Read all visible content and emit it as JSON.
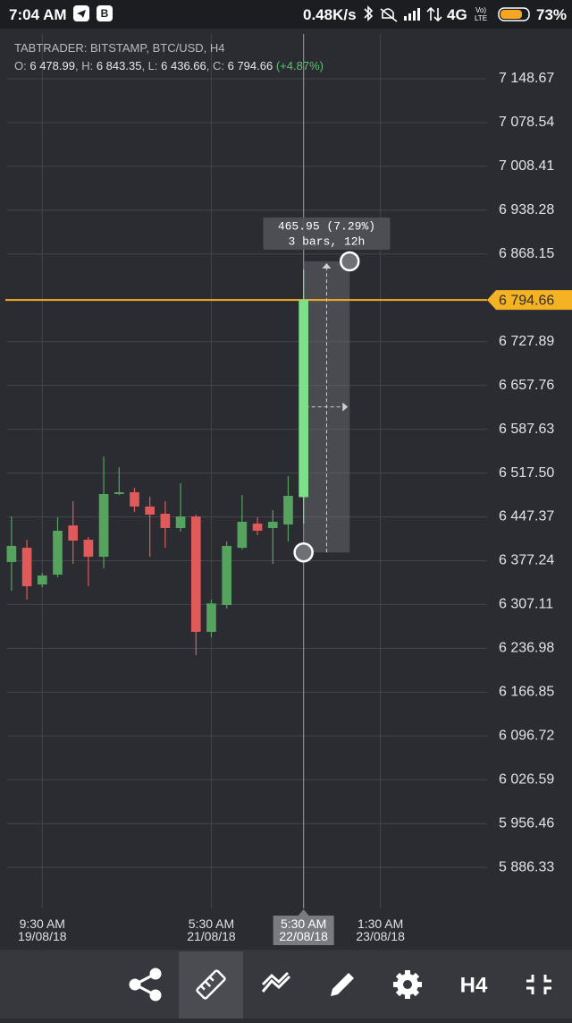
{
  "status_bar": {
    "time": "7:04 AM",
    "speed": "0.48K/s",
    "network": "4G",
    "battery": "73%"
  },
  "header": {
    "title": "TABTRADER: BITSTAMP, BTC/USD, H4",
    "open_label": "O:",
    "open": "6 478.99",
    "high_label": "H:",
    "high": "6 843.35",
    "low_label": "L:",
    "low": "6 436.66",
    "close_label": "C:",
    "close": "6 794.66",
    "change": "(+4.87%)"
  },
  "chart_data": {
    "type": "candlestick",
    "open": [
      6375.1,
      6397.9,
      6339.2,
      6354.9,
      6433.7,
      6410.8,
      6383.6,
      6483.9,
      6486.8,
      6463.9,
      6452.4,
      6429.5,
      6448.1,
      6263.3,
      6306.2,
      6397.9,
      6436.6,
      6429.5,
      6435.2,
      6478.99
    ],
    "high": [
      6448.1,
      6410.8,
      6357.8,
      6446.6,
      6472.4,
      6415.2,
      6544.1,
      6526.9,
      6493.9,
      6479.6,
      6472.4,
      6501.1,
      6451.0,
      6314.9,
      6408.0,
      6482.4,
      6446.6,
      6458.1,
      6512.5,
      6843.35
    ],
    "low": [
      6329.2,
      6314.9,
      6334.9,
      6350.6,
      6372.1,
      6336.3,
      6365.0,
      6482.4,
      6455.2,
      6383.6,
      6397.9,
      6423.7,
      6226.0,
      6254.7,
      6300.5,
      6395.1,
      6418.0,
      6372.1,
      6408.0,
      6436.66
    ],
    "close": [
      6400.9,
      6336.3,
      6353.5,
      6425.2,
      6409.4,
      6383.6,
      6483.9,
      6486.8,
      6463.9,
      6451.0,
      6429.5,
      6448.1,
      6263.3,
      6308.8,
      6400.9,
      6439.5,
      6425.2,
      6439.5,
      6481.0,
      6794.66
    ],
    "up_color": "#56a35f",
    "down_color": "#e05a5a",
    "active_color": "#7fe08a",
    "xlim": [
      -0.75,
      30.65
    ],
    "xticks": [
      {
        "value": 2,
        "label": "9:30 AM\n19/08/18"
      },
      {
        "value": 13,
        "label": "5:30 AM\n21/08/18"
      },
      {
        "value": 24,
        "label": "1:30 AM\n23/08/18"
      }
    ],
    "crosshair": {
      "value": 19,
      "label": "5:30 AM\n22/08/18"
    },
    "ylim": [
      5820.6,
      7220.3
    ],
    "yticks": [
      {
        "value": 7148.67,
        "label": "7 148.67"
      },
      {
        "value": 7078.54,
        "label": "7 078.54"
      },
      {
        "value": 7008.41,
        "label": "7 008.41"
      },
      {
        "value": 6938.28,
        "label": "6 938.28"
      },
      {
        "value": 6868.15,
        "label": "6 868.15"
      },
      {
        "value": 6727.89,
        "label": "6 727.89"
      },
      {
        "value": 6657.76,
        "label": "6 657.76"
      },
      {
        "value": 6587.63,
        "label": "6 587.63"
      },
      {
        "value": 6517.5,
        "label": "6 517.50"
      },
      {
        "value": 6447.37,
        "label": "6 447.37"
      },
      {
        "value": 6377.24,
        "label": "6 377.24"
      },
      {
        "value": 6307.11,
        "label": "6 307.11"
      },
      {
        "value": 6236.98,
        "label": "6 236.98"
      },
      {
        "value": 6166.85,
        "label": "6 166.85"
      },
      {
        "value": 6096.72,
        "label": "6 096.72"
      },
      {
        "value": 6026.59,
        "label": "6 026.59"
      },
      {
        "value": 5956.46,
        "label": "5 956.46"
      },
      {
        "value": 5886.33,
        "label": "5 886.33"
      }
    ],
    "grid": true,
    "current_price": {
      "value": 6794.66,
      "label": "6 794.66",
      "color": "#f5b324"
    },
    "measure": {
      "from": 6390.45,
      "to": 6856.4,
      "start_bar": 19,
      "end_bar": 22,
      "text": "465.95 (7.29%)",
      "subtext": "3 bars, 12h"
    }
  },
  "toolbar": {
    "timeframe": "H4"
  }
}
